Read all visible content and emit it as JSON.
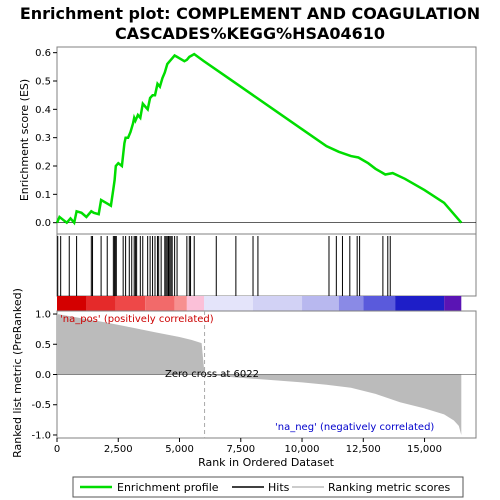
{
  "chart_data": {
    "type": "line",
    "title_line1": "Enrichment plot: COMPLEMENT AND COAGULATION",
    "title_line2": "CASCADES%KEGG%HSA04610",
    "xlabel": "Rank in Ordered Dataset",
    "xlim": [
      0,
      17100
    ],
    "xticks": [
      0,
      2500,
      5000,
      7500,
      10000,
      12500,
      15000
    ],
    "xtick_labels": [
      "0",
      "2,500",
      "5,000",
      "7,500",
      "10,000",
      "12,500",
      "15,000"
    ],
    "es_panel": {
      "ylabel": "Enrichment score (ES)",
      "ylim": [
        -0.04,
        0.62
      ],
      "yticks": [
        0.0,
        0.1,
        0.2,
        0.3,
        0.4,
        0.5,
        0.6
      ],
      "ytick_labels": [
        "0.0",
        "0.1",
        "0.2",
        "0.3",
        "0.4",
        "0.5",
        "0.6"
      ],
      "line_color": "#00dd00",
      "x": [
        0,
        100,
        250,
        400,
        550,
        700,
        800,
        1000,
        1200,
        1400,
        1500,
        1700,
        1800,
        2000,
        2200,
        2300,
        2350,
        2400,
        2500,
        2650,
        2750,
        2800,
        2900,
        3000,
        3100,
        3150,
        3200,
        3300,
        3400,
        3500,
        3600,
        3700,
        3800,
        3900,
        4000,
        4100,
        4200,
        4300,
        4400,
        4500,
        4600,
        4700,
        4800,
        4900,
        5000,
        5200,
        5300,
        5400,
        5500,
        5600,
        6000,
        7000,
        8000,
        9000,
        10000,
        11000,
        11500,
        12000,
        12300,
        12700,
        13000,
        13400,
        13700,
        14200,
        15000,
        15800,
        16500
      ],
      "es": [
        0.0,
        0.02,
        0.01,
        0.0,
        0.015,
        0.0,
        0.04,
        0.035,
        0.02,
        0.04,
        0.035,
        0.03,
        0.08,
        0.07,
        0.06,
        0.12,
        0.15,
        0.2,
        0.21,
        0.2,
        0.28,
        0.3,
        0.3,
        0.32,
        0.35,
        0.37,
        0.36,
        0.38,
        0.37,
        0.42,
        0.41,
        0.4,
        0.44,
        0.45,
        0.45,
        0.49,
        0.48,
        0.51,
        0.53,
        0.56,
        0.57,
        0.58,
        0.59,
        0.585,
        0.58,
        0.57,
        0.575,
        0.585,
        0.59,
        0.595,
        0.57,
        0.51,
        0.45,
        0.39,
        0.33,
        0.27,
        0.25,
        0.235,
        0.23,
        0.21,
        0.19,
        0.17,
        0.175,
        0.155,
        0.115,
        0.07,
        0.0
      ]
    },
    "hits": [
      30,
      150,
      500,
      800,
      1400,
      1450,
      1800,
      2050,
      2300,
      2350,
      2380,
      2420,
      2700,
      2800,
      2950,
      3050,
      3150,
      3200,
      3250,
      3400,
      3500,
      3700,
      3800,
      3900,
      4000,
      4100,
      4150,
      4250,
      4400,
      4450,
      4500,
      4550,
      4600,
      4650,
      4700,
      4800,
      4900,
      5300,
      5400,
      5450,
      5600,
      6500,
      7300,
      8000,
      8200,
      11100,
      11400,
      11650,
      11950,
      12250,
      12350,
      13300,
      13500,
      13600
    ],
    "metric_panel": {
      "ylabel": "Ranked list metric (PreRanked)",
      "ylim": [
        -1.05,
        1.05
      ],
      "yticks": [
        1.0,
        0.5,
        0.0,
        -0.5,
        -1.0
      ],
      "ytick_labels": [
        "1.0",
        "0.5",
        "0.0",
        "-0.5",
        "-1.0"
      ],
      "rank": [
        0,
        300,
        1000,
        2000,
        3000,
        4000,
        5000,
        5500,
        5900,
        6022,
        7000,
        8000,
        9000,
        10000,
        11000,
        12000,
        13000,
        14000,
        15000,
        15800,
        16200,
        16400,
        16500
      ],
      "metric": [
        1.0,
        0.98,
        0.93,
        0.86,
        0.78,
        0.7,
        0.62,
        0.57,
        0.52,
        0.0,
        -0.04,
        -0.07,
        -0.1,
        -0.13,
        -0.17,
        -0.22,
        -0.32,
        -0.46,
        -0.56,
        -0.66,
        -0.76,
        -0.85,
        -1.0
      ],
      "zero_cross_label": "Zero cross at 6022",
      "zero_cross_rank": 6022,
      "pos_label": "'na_pos' (positively correlated)",
      "neg_label": "'na_neg' (negatively correlated)"
    },
    "colorbar_segments": [
      {
        "from": 0,
        "to": 1200,
        "color": "#d40000"
      },
      {
        "from": 1200,
        "to": 2400,
        "color": "#e52a2a"
      },
      {
        "from": 2400,
        "to": 3600,
        "color": "#ee4848"
      },
      {
        "from": 3600,
        "to": 4800,
        "color": "#f26a6a"
      },
      {
        "from": 4800,
        "to": 5300,
        "color": "#f79090"
      },
      {
        "from": 5300,
        "to": 6000,
        "color": "#fbc0d8"
      },
      {
        "from": 6000,
        "to": 8000,
        "color": "#e4e4fa"
      },
      {
        "from": 8000,
        "to": 10000,
        "color": "#d2d2f5"
      },
      {
        "from": 10000,
        "to": 11500,
        "color": "#b8b8ef"
      },
      {
        "from": 11500,
        "to": 12500,
        "color": "#8a8ae6"
      },
      {
        "from": 12500,
        "to": 13800,
        "color": "#5a5adc"
      },
      {
        "from": 13800,
        "to": 15800,
        "color": "#1e1ec8"
      },
      {
        "from": 15800,
        "to": 16500,
        "color": "#5a14b4"
      }
    ],
    "legend": [
      {
        "label": "Enrichment profile",
        "color": "#00dd00"
      },
      {
        "label": "Hits",
        "color": "#000000"
      },
      {
        "label": "Ranking metric scores",
        "color": "#bbbbbb"
      }
    ]
  }
}
